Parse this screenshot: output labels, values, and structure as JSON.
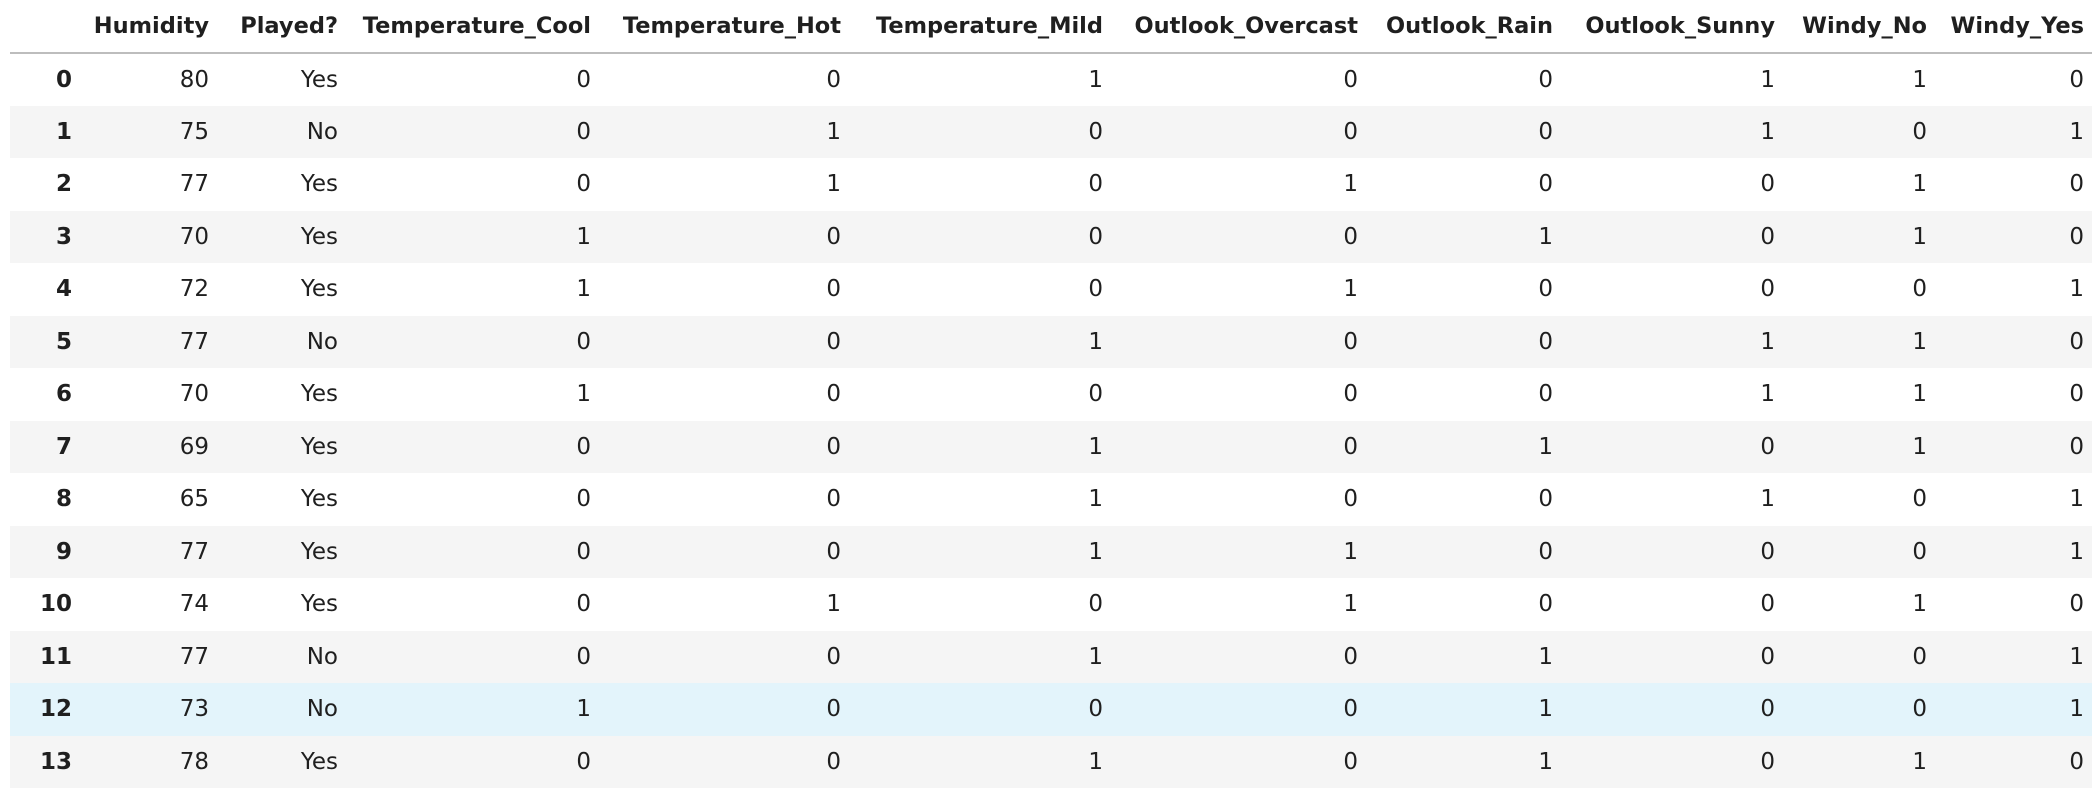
{
  "table": {
    "columns": [
      "",
      "Humidity",
      "Played?",
      "Temperature_Cool",
      "Temperature_Hot",
      "Temperature_Mild",
      "Outlook_Overcast",
      "Outlook_Rain",
      "Outlook_Sunny",
      "Windy_No",
      "Windy_Yes"
    ],
    "rows": [
      [
        "0",
        "80",
        "Yes",
        "0",
        "0",
        "1",
        "0",
        "0",
        "1",
        "1",
        "0"
      ],
      [
        "1",
        "75",
        "No",
        "0",
        "1",
        "0",
        "0",
        "0",
        "1",
        "0",
        "1"
      ],
      [
        "2",
        "77",
        "Yes",
        "0",
        "1",
        "0",
        "1",
        "0",
        "0",
        "1",
        "0"
      ],
      [
        "3",
        "70",
        "Yes",
        "1",
        "0",
        "0",
        "0",
        "1",
        "0",
        "1",
        "0"
      ],
      [
        "4",
        "72",
        "Yes",
        "1",
        "0",
        "0",
        "1",
        "0",
        "0",
        "0",
        "1"
      ],
      [
        "5",
        "77",
        "No",
        "0",
        "0",
        "1",
        "0",
        "0",
        "1",
        "1",
        "0"
      ],
      [
        "6",
        "70",
        "Yes",
        "1",
        "0",
        "0",
        "0",
        "0",
        "1",
        "1",
        "0"
      ],
      [
        "7",
        "69",
        "Yes",
        "0",
        "0",
        "1",
        "0",
        "1",
        "0",
        "1",
        "0"
      ],
      [
        "8",
        "65",
        "Yes",
        "0",
        "0",
        "1",
        "0",
        "0",
        "1",
        "0",
        "1"
      ],
      [
        "9",
        "77",
        "Yes",
        "0",
        "0",
        "1",
        "1",
        "0",
        "0",
        "0",
        "1"
      ],
      [
        "10",
        "74",
        "Yes",
        "0",
        "1",
        "0",
        "1",
        "0",
        "0",
        "1",
        "0"
      ],
      [
        "11",
        "77",
        "No",
        "0",
        "0",
        "1",
        "0",
        "1",
        "0",
        "0",
        "1"
      ],
      [
        "12",
        "73",
        "No",
        "1",
        "0",
        "0",
        "0",
        "1",
        "0",
        "0",
        "1"
      ],
      [
        "13",
        "78",
        "Yes",
        "0",
        "0",
        "1",
        "0",
        "1",
        "0",
        "1",
        "0"
      ]
    ],
    "selected_row_index": 12
  },
  "colors": {
    "header_border": "#bdbdbd",
    "stripe": "#f5f5f5",
    "selected_row": "#e3f4fb",
    "text": "#1f1f1f"
  }
}
